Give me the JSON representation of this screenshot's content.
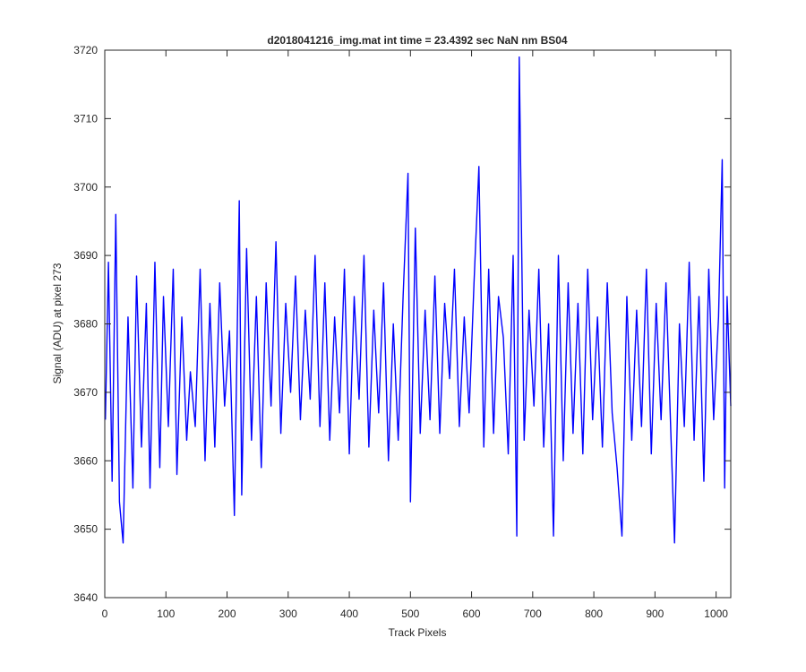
{
  "chart_data": {
    "type": "line",
    "title": "d2018041216_img.mat int time = 23.4392 sec  NaN nm BS04",
    "xlabel": "Track Pixels",
    "ylabel": "Signal (ADU) at pixel 273",
    "xlim": [
      0,
      1024
    ],
    "ylim": [
      3640,
      3720
    ],
    "xticks": [
      0,
      100,
      200,
      300,
      400,
      500,
      600,
      700,
      800,
      900,
      1000
    ],
    "yticks": [
      3640,
      3650,
      3660,
      3670,
      3680,
      3690,
      3700,
      3710,
      3720
    ],
    "grid": false,
    "legend": "none",
    "series_color": "#0000ff",
    "series": [
      {
        "points_note_free": true,
        "x": [
          1,
          6,
          12,
          18,
          24,
          30,
          38,
          46,
          52,
          60,
          68,
          74,
          82,
          90,
          96,
          104,
          112,
          118,
          126,
          134,
          140,
          148,
          156,
          164,
          172,
          180,
          188,
          196,
          204,
          212,
          220,
          224,
          232,
          240,
          248,
          256,
          264,
          272,
          280,
          288,
          296,
          304,
          312,
          320,
          328,
          336,
          344,
          352,
          360,
          368,
          376,
          384,
          392,
          400,
          408,
          416,
          424,
          432,
          440,
          448,
          456,
          464,
          472,
          480,
          488,
          496,
          500,
          508,
          516,
          524,
          532,
          540,
          548,
          556,
          564,
          572,
          580,
          588,
          596,
          604,
          612,
          620,
          628,
          636,
          644,
          652,
          660,
          668,
          674,
          678,
          686,
          694,
          702,
          710,
          718,
          726,
          734,
          742,
          750,
          758,
          766,
          774,
          782,
          790,
          798,
          806,
          814,
          822,
          830,
          838,
          846,
          854,
          862,
          870,
          878,
          886,
          894,
          902,
          910,
          918,
          926,
          932,
          940,
          948,
          956,
          964,
          972,
          980,
          988,
          996,
          1004,
          1010,
          1014,
          1018,
          1024
        ],
        "y": [
          3666,
          3689,
          3657,
          3696,
          3654,
          3648,
          3681,
          3656,
          3687,
          3662,
          3683,
          3656,
          3689,
          3659,
          3684,
          3665,
          3688,
          3658,
          3681,
          3663,
          3673,
          3665,
          3688,
          3660,
          3683,
          3662,
          3686,
          3668,
          3679,
          3652,
          3698,
          3655,
          3691,
          3663,
          3684,
          3659,
          3686,
          3668,
          3692,
          3664,
          3683,
          3670,
          3687,
          3666,
          3682,
          3669,
          3690,
          3665,
          3686,
          3663,
          3681,
          3667,
          3688,
          3661,
          3684,
          3669,
          3690,
          3662,
          3682,
          3667,
          3686,
          3660,
          3680,
          3663,
          3684,
          3702,
          3654,
          3694,
          3664,
          3682,
          3666,
          3687,
          3664,
          3683,
          3672,
          3688,
          3665,
          3681,
          3667,
          3686,
          3703,
          3662,
          3688,
          3664,
          3684,
          3678,
          3661,
          3690,
          3649,
          3719,
          3663,
          3682,
          3668,
          3688,
          3662,
          3680,
          3649,
          3690,
          3660,
          3686,
          3664,
          3683,
          3661,
          3688,
          3666,
          3681,
          3662,
          3686,
          3667,
          3659,
          3649,
          3684,
          3663,
          3682,
          3665,
          3688,
          3661,
          3683,
          3666,
          3686,
          3664,
          3648,
          3680,
          3665,
          3689,
          3663,
          3684,
          3657,
          3688,
          3666,
          3681,
          3704,
          3656,
          3684,
          3668
        ]
      }
    ]
  }
}
